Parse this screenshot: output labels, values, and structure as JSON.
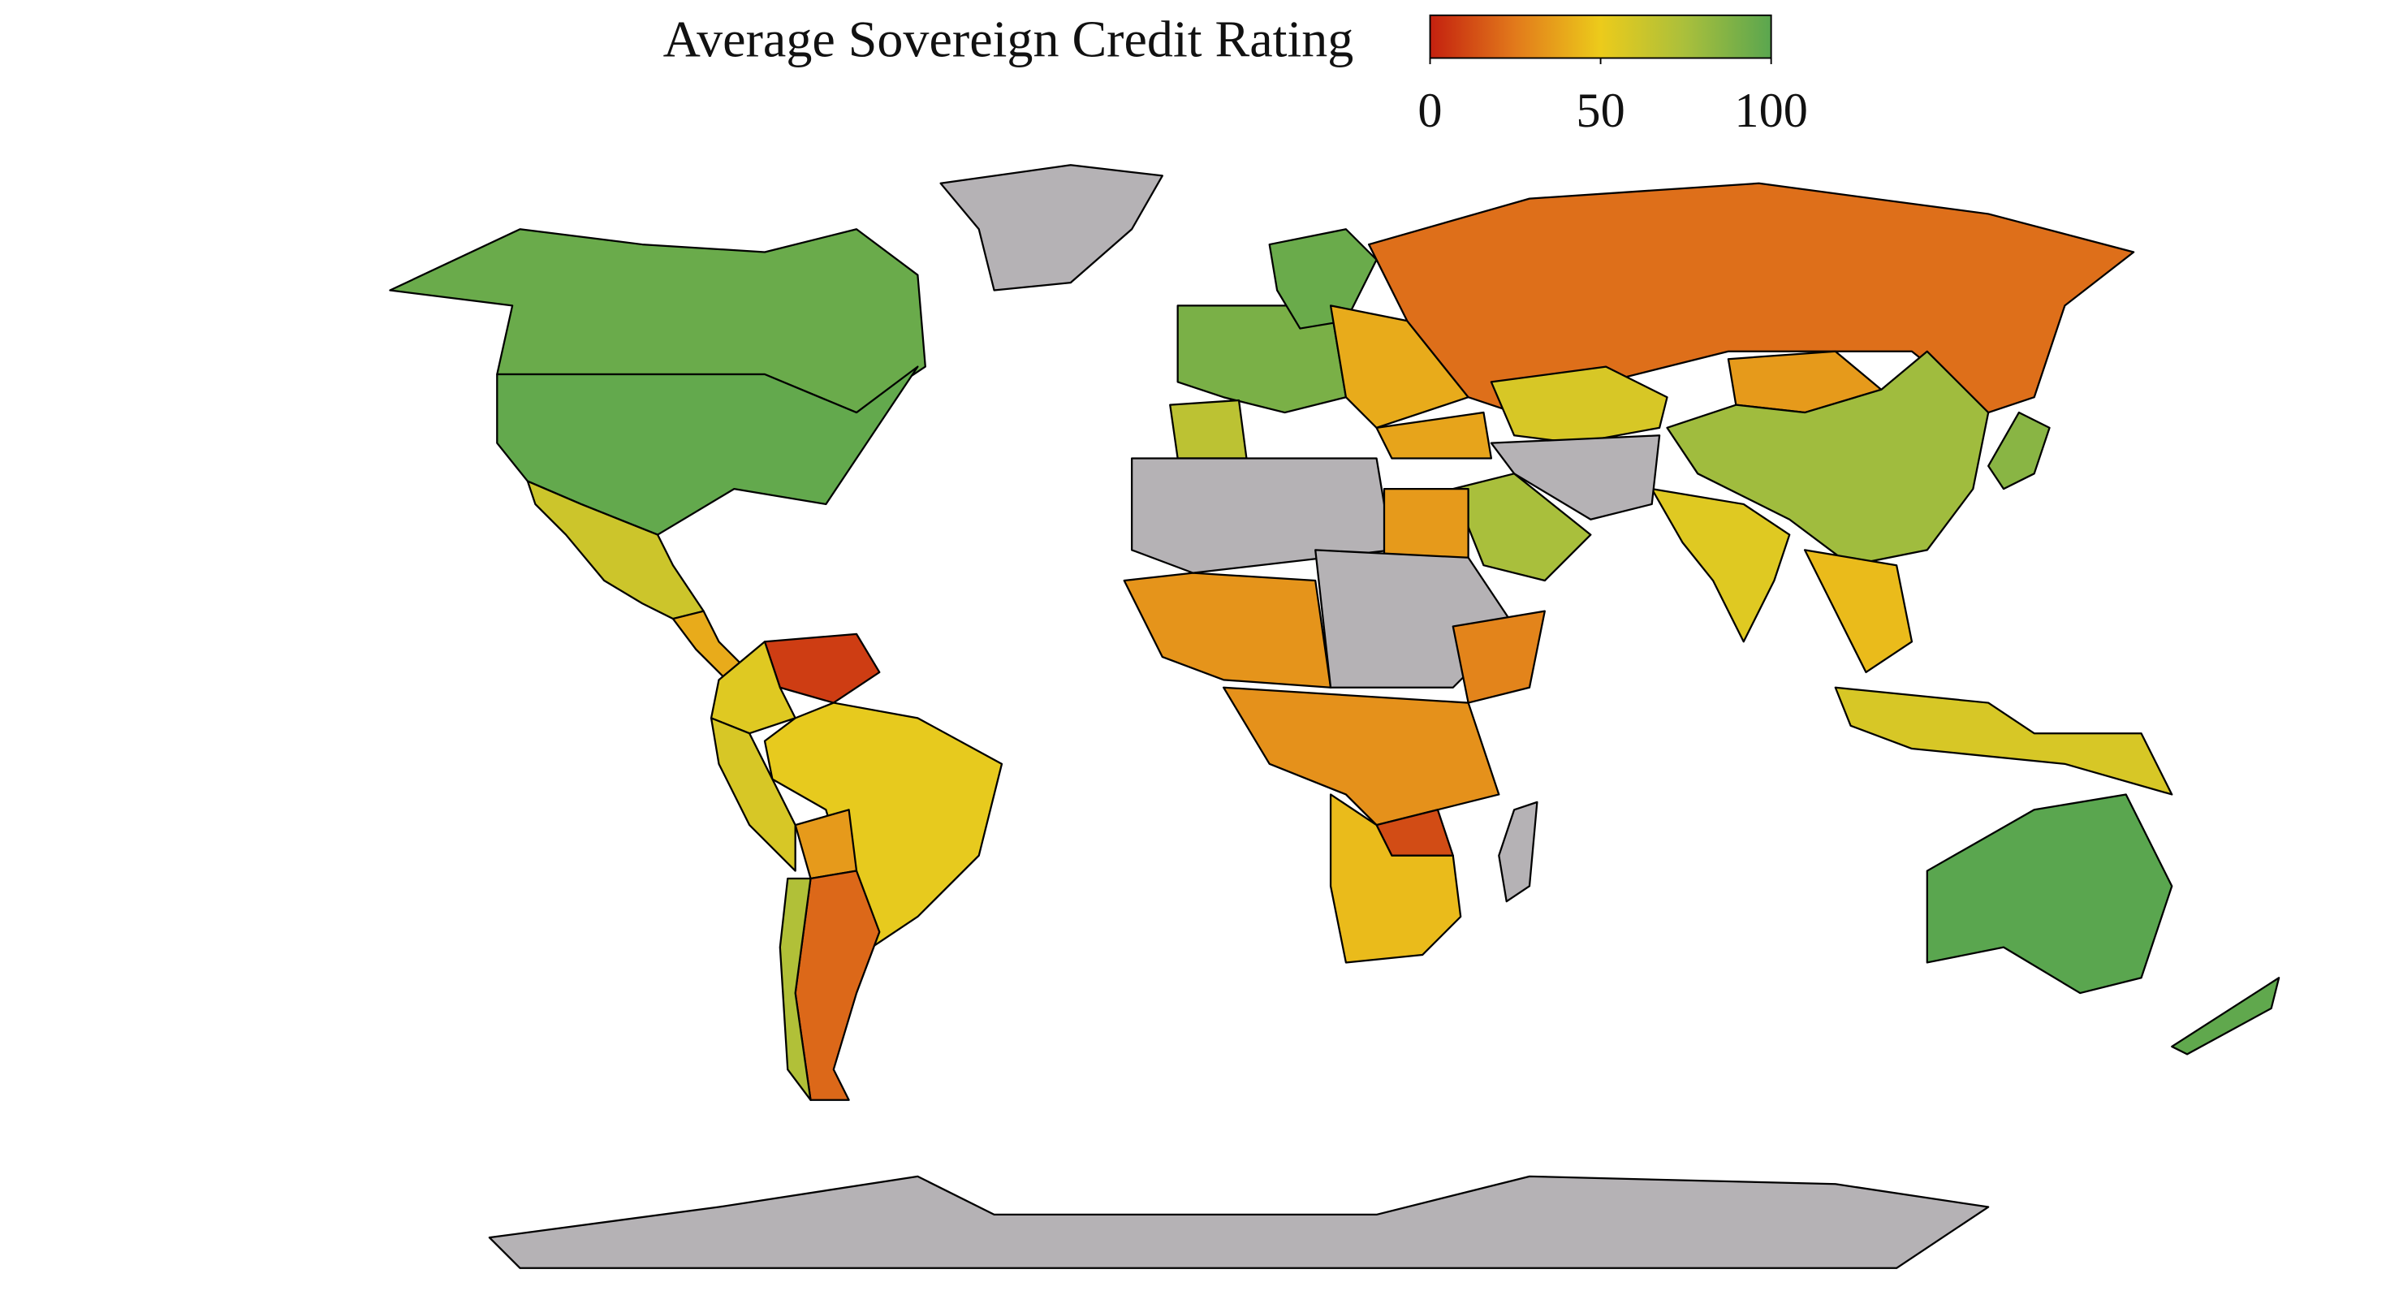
{
  "chart_data": {
    "type": "choropleth",
    "title": "Average Sovereign Credit Rating",
    "colorbar": {
      "lim": [
        0,
        100
      ],
      "ticks": [
        0,
        50,
        100
      ],
      "colors": [
        "#c4210f",
        "#e27a1b",
        "#eccb1b",
        "#a9bf3c",
        "#5aa64f"
      ]
    },
    "no_data_color": "#b5b2b5",
    "values": [
      95,
      97,
      null,
      62,
      40,
      8,
      55,
      52,
      58,
      35,
      20,
      72,
      90,
      95,
      68,
      40,
      38,
      22,
      58,
      35,
      78,
      85,
      55,
      null,
      75,
      null,
      35,
      33,
      null,
      28,
      32,
      12,
      45,
      null,
      45,
      58,
      100,
      98,
      null
    ]
  }
}
